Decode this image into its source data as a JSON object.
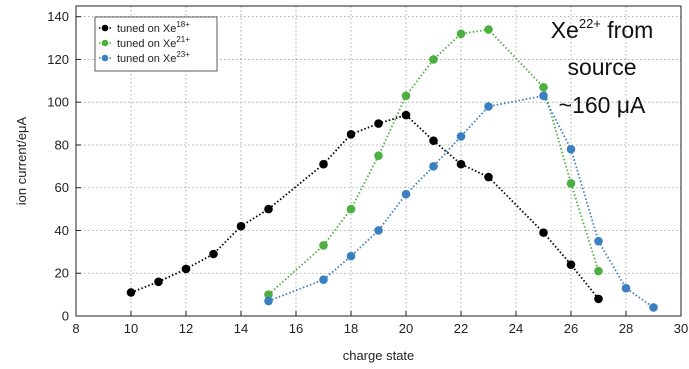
{
  "chart_data": {
    "type": "line",
    "xlabel": "charge state",
    "ylabel": "ion current/eμA",
    "xlim": [
      8,
      30
    ],
    "ylim": [
      0,
      145
    ],
    "xticks": [
      "8",
      "10",
      "12",
      "14",
      "16",
      "18",
      "20",
      "22",
      "24",
      "26",
      "28",
      "30"
    ],
    "yticks": [
      "0",
      "20",
      "40",
      "60",
      "80",
      "100",
      "120",
      "140"
    ],
    "grid": true,
    "legend_position": "top-left",
    "series": [
      {
        "name": "tuned on Xe",
        "name_sup": "18+",
        "color": "#000000",
        "x": [
          10,
          11,
          12,
          13,
          14,
          15,
          17,
          18,
          19,
          20,
          21,
          22,
          23,
          25,
          26,
          27
        ],
        "y": [
          11,
          16,
          22,
          29,
          42,
          50,
          71,
          85,
          90,
          94,
          82,
          71,
          65,
          39,
          24,
          8
        ]
      },
      {
        "name": "tuned on Xe",
        "name_sup": "21+",
        "color": "#4caf3f",
        "x": [
          15,
          17,
          18,
          19,
          20,
          21,
          22,
          23,
          25,
          26,
          27
        ],
        "y": [
          10,
          33,
          50,
          75,
          103,
          120,
          132,
          134,
          107,
          62,
          21
        ]
      },
      {
        "name": "tuned on Xe",
        "name_sup": "23+",
        "color": "#3a7fc1",
        "x": [
          15,
          17,
          18,
          19,
          20,
          21,
          22,
          23,
          25,
          26,
          27,
          28,
          29
        ],
        "y": [
          7,
          17,
          28,
          40,
          57,
          70,
          84,
          98,
          103,
          78,
          35,
          13,
          4
        ]
      }
    ],
    "annotation": {
      "line1_prefix": "Xe",
      "line1_sup": "22+",
      "line1_suffix": " from",
      "line2": "source",
      "line3": "~160 μA"
    }
  }
}
